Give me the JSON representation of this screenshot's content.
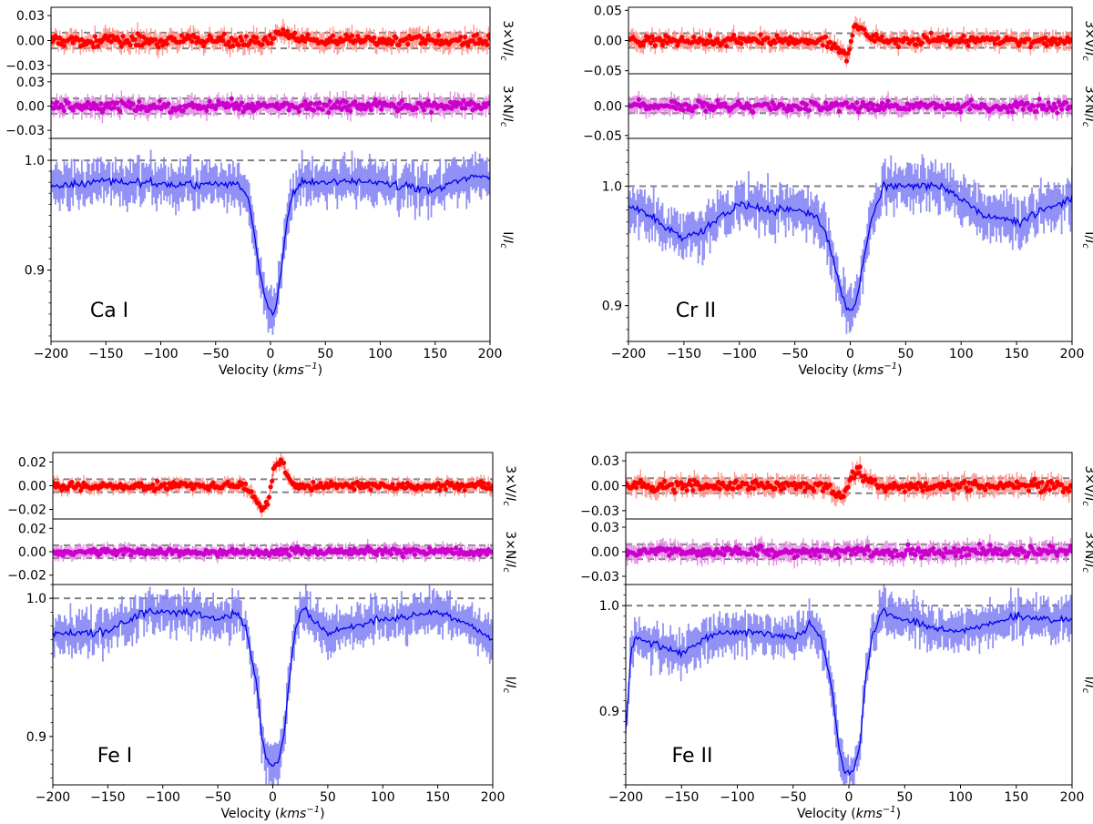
{
  "chart_data": [
    {
      "type": "line",
      "label": "Ca I",
      "xlabel": "Velocity",
      "xlabel_unit": "kms",
      "xlabel_unit_exp": "−1",
      "xlim": [
        -200,
        200
      ],
      "x_ticks": [
        "−200",
        "−150",
        "−100",
        "−50",
        "0",
        "50",
        "100",
        "150",
        "200"
      ],
      "x_tick_values": [
        -200,
        -150,
        -100,
        -50,
        0,
        50,
        100,
        150,
        200
      ],
      "series": [
        {
          "panel": "V",
          "ylabel": "3×V/I",
          "ylabel_sub": "c",
          "color": "#ff0000",
          "ylim": [
            -0.04,
            0.04
          ],
          "y_ticks": [
            "0.03",
            "0.00",
            "−0.03"
          ],
          "y_tick_values": [
            0.03,
            0.0,
            -0.03
          ],
          "ref_lines": [
            0.0095,
            -0.0095
          ],
          "x": [
            -200,
            -100,
            -25,
            -10,
            0,
            5,
            10,
            20,
            50,
            100,
            200
          ],
          "values": [
            0.0,
            0.0,
            0.0,
            -0.003,
            -0.002,
            0.006,
            0.012,
            0.004,
            0.0,
            0.0,
            0.0
          ],
          "noise": 0.008
        },
        {
          "panel": "N",
          "ylabel": "3×N/I",
          "ylabel_sub": "c",
          "color": "#cc00cc",
          "ylim": [
            -0.04,
            0.04
          ],
          "y_ticks": [
            "0.03",
            "0.00",
            "−0.03"
          ],
          "y_tick_values": [
            0.03,
            0.0,
            -0.03
          ],
          "ref_lines": [
            0.0095,
            -0.0095
          ],
          "x": [
            -200,
            200
          ],
          "values": [
            0.0,
            0.0
          ],
          "noise": 0.008
        },
        {
          "panel": "I",
          "ylabel": "I/I",
          "ylabel_sub": "c",
          "color": "#0000ee",
          "ylim": [
            0.835,
            1.02
          ],
          "y_ticks": [
            "1.0",
            "0.9"
          ],
          "y_tick_values": [
            1.0,
            0.9
          ],
          "ref_lines": [
            1.0
          ],
          "x": [
            -200,
            -150,
            -100,
            -50,
            -30,
            -20,
            -15,
            -10,
            -5,
            0,
            3,
            5,
            10,
            15,
            20,
            30,
            50,
            100,
            150,
            180,
            200
          ],
          "values": [
            0.975,
            0.982,
            0.978,
            0.978,
            0.98,
            0.965,
            0.935,
            0.9,
            0.875,
            0.862,
            0.858,
            0.865,
            0.9,
            0.945,
            0.97,
            0.98,
            0.98,
            0.98,
            0.972,
            0.985,
            0.985
          ],
          "noise": 0.012
        }
      ]
    },
    {
      "type": "line",
      "label": "Cr II",
      "xlabel": "Velocity",
      "xlabel_unit": "kms",
      "xlabel_unit_exp": "−1",
      "xlim": [
        -200,
        200
      ],
      "x_ticks": [
        "−200",
        "−150",
        "−100",
        "−50",
        "0",
        "50",
        "100",
        "150",
        "200"
      ],
      "x_tick_values": [
        -200,
        -150,
        -100,
        -50,
        0,
        50,
        100,
        150,
        200
      ],
      "series": [
        {
          "panel": "V",
          "ylabel": "3×V/I",
          "ylabel_sub": "c",
          "color": "#ff0000",
          "ylim": [
            -0.055,
            0.055
          ],
          "y_ticks": [
            "0.05",
            "0.00",
            "−0.05"
          ],
          "y_tick_values": [
            0.05,
            0.0,
            -0.05
          ],
          "ref_lines": [
            0.012,
            -0.012
          ],
          "x": [
            -200,
            -100,
            -20,
            -10,
            -3,
            0,
            3,
            8,
            15,
            30,
            100,
            200
          ],
          "values": [
            0.0,
            0.0,
            0.0,
            -0.012,
            -0.03,
            -0.01,
            0.02,
            0.027,
            0.01,
            0.0,
            0.0,
            0.0
          ],
          "noise": 0.01
        },
        {
          "panel": "N",
          "ylabel": "3×N/I",
          "ylabel_sub": "c",
          "color": "#cc00cc",
          "ylim": [
            -0.055,
            0.055
          ],
          "y_ticks": [
            "0.00",
            "−0.05"
          ],
          "y_tick_values": [
            0.0,
            -0.05
          ],
          "ref_lines": [
            0.012,
            -0.012
          ],
          "x": [
            -200,
            200
          ],
          "values": [
            0.0,
            0.0
          ],
          "noise": 0.01
        },
        {
          "panel": "I",
          "ylabel": "I/I",
          "ylabel_sub": "c",
          "color": "#0000ee",
          "ylim": [
            0.87,
            1.04
          ],
          "y_ticks": [
            "1.0",
            "0.9"
          ],
          "y_tick_values": [
            1.0,
            0.9
          ],
          "ref_lines": [
            1.0
          ],
          "x": [
            -200,
            -180,
            -150,
            -130,
            -100,
            -80,
            -50,
            -30,
            -20,
            -10,
            -5,
            0,
            5,
            10,
            20,
            30,
            50,
            80,
            100,
            120,
            150,
            200
          ],
          "values": [
            0.985,
            0.975,
            0.955,
            0.965,
            0.985,
            0.98,
            0.98,
            0.975,
            0.955,
            0.92,
            0.9,
            0.895,
            0.9,
            0.93,
            0.975,
            1.0,
            1.0,
            1.0,
            0.99,
            0.975,
            0.97,
            0.99
          ],
          "noise": 0.012
        }
      ]
    },
    {
      "type": "line",
      "label": "Fe I",
      "xlabel": "Velocity",
      "xlabel_unit": "kms",
      "xlabel_unit_exp": "−1",
      "xlim": [
        -200,
        200
      ],
      "x_ticks": [
        "−200",
        "−150",
        "−100",
        "−50",
        "0",
        "50",
        "100",
        "150",
        "200"
      ],
      "x_tick_values": [
        -200,
        -150,
        -100,
        -50,
        0,
        50,
        100,
        150,
        200
      ],
      "series": [
        {
          "panel": "V",
          "ylabel": "3×V/I",
          "ylabel_sub": "c",
          "color": "#ff0000",
          "ylim": [
            -0.028,
            0.028
          ],
          "y_ticks": [
            "0.02",
            "0.00",
            "−0.02"
          ],
          "y_tick_values": [
            0.02,
            0.0,
            -0.02
          ],
          "ref_lines": [
            0.0055,
            -0.0055
          ],
          "x": [
            -200,
            -100,
            -25,
            -15,
            -8,
            -3,
            0,
            3,
            8,
            12,
            20,
            100,
            200
          ],
          "values": [
            0.0,
            0.0,
            0.0,
            -0.012,
            -0.02,
            -0.01,
            0.01,
            0.018,
            0.02,
            0.01,
            0.0,
            0.0,
            0.0
          ],
          "noise": 0.004
        },
        {
          "panel": "N",
          "ylabel": "3×N/I",
          "ylabel_sub": "c",
          "color": "#cc00cc",
          "ylim": [
            -0.028,
            0.028
          ],
          "y_ticks": [
            "0.02",
            "0.00",
            "−0.02"
          ],
          "y_tick_values": [
            0.02,
            0.0,
            -0.02
          ],
          "ref_lines": [
            0.0055,
            -0.0055
          ],
          "x": [
            -200,
            200
          ],
          "values": [
            0.0,
            0.0
          ],
          "noise": 0.004
        },
        {
          "panel": "I",
          "ylabel": "I/I",
          "ylabel_sub": "c",
          "color": "#0000ee",
          "ylim": [
            0.865,
            1.01
          ],
          "y_ticks": [
            "1.0",
            "0.9"
          ],
          "y_tick_values": [
            1.0,
            0.9
          ],
          "ref_lines": [
            1.0
          ],
          "x": [
            -200,
            -150,
            -120,
            -80,
            -50,
            -35,
            -25,
            -15,
            -10,
            -5,
            0,
            5,
            10,
            15,
            20,
            28,
            35,
            50,
            100,
            150,
            180,
            200
          ],
          "values": [
            0.975,
            0.975,
            0.99,
            0.99,
            0.985,
            0.99,
            0.98,
            0.94,
            0.9,
            0.882,
            0.878,
            0.882,
            0.9,
            0.94,
            0.975,
            0.995,
            0.985,
            0.975,
            0.985,
            0.99,
            0.98,
            0.97
          ],
          "noise": 0.009
        }
      ]
    },
    {
      "type": "line",
      "label": "Fe II",
      "xlabel": "Velocity",
      "xlabel_unit": "kms",
      "xlabel_unit_exp": "−1",
      "xlim": [
        -200,
        200
      ],
      "x_ticks": [
        "−200",
        "−150",
        "−100",
        "−50",
        "0",
        "50",
        "100",
        "150",
        "200"
      ],
      "x_tick_values": [
        -200,
        -150,
        -100,
        -50,
        0,
        50,
        100,
        150,
        200
      ],
      "series": [
        {
          "panel": "V",
          "ylabel": "3×V/I",
          "ylabel_sub": "c",
          "color": "#ff0000",
          "ylim": [
            -0.04,
            0.04
          ],
          "y_ticks": [
            "0.03",
            "0.00",
            "−0.03"
          ],
          "y_tick_values": [
            0.03,
            0.0,
            -0.03
          ],
          "ref_lines": [
            0.009,
            -0.009
          ],
          "x": [
            -200,
            -100,
            -20,
            -10,
            -5,
            0,
            3,
            8,
            15,
            30,
            100,
            200
          ],
          "values": [
            0.0,
            0.0,
            0.0,
            -0.01,
            -0.012,
            0.0,
            0.015,
            0.02,
            0.008,
            0.0,
            0.0,
            0.0
          ],
          "noise": 0.008
        },
        {
          "panel": "N",
          "ylabel": "3×N/I",
          "ylabel_sub": "c",
          "color": "#cc00cc",
          "ylim": [
            -0.04,
            0.04
          ],
          "y_ticks": [
            "0.03",
            "0.00",
            "−0.03"
          ],
          "y_tick_values": [
            0.03,
            0.0,
            -0.03
          ],
          "ref_lines": [
            0.009,
            -0.009
          ],
          "x": [
            -200,
            200
          ],
          "values": [
            0.0,
            0.0
          ],
          "noise": 0.008
        },
        {
          "panel": "I",
          "ylabel": "I/I",
          "ylabel_sub": "c",
          "color": "#0000ee",
          "ylim": [
            0.83,
            1.02
          ],
          "y_ticks": [
            "1.0",
            "0.9"
          ],
          "y_tick_values": [
            1.0,
            0.9
          ],
          "ref_lines": [
            1.0
          ],
          "x": [
            -200,
            -195,
            -190,
            -150,
            -120,
            -80,
            -50,
            -40,
            -35,
            -25,
            -15,
            -10,
            -5,
            0,
            5,
            10,
            15,
            22,
            30,
            50,
            100,
            150,
            200
          ],
          "values": [
            0.88,
            0.96,
            0.97,
            0.955,
            0.975,
            0.975,
            0.97,
            0.975,
            0.985,
            0.97,
            0.92,
            0.875,
            0.845,
            0.84,
            0.845,
            0.87,
            0.93,
            0.975,
            0.995,
            0.985,
            0.975,
            0.99,
            0.985
          ],
          "noise": 0.012
        }
      ]
    }
  ]
}
